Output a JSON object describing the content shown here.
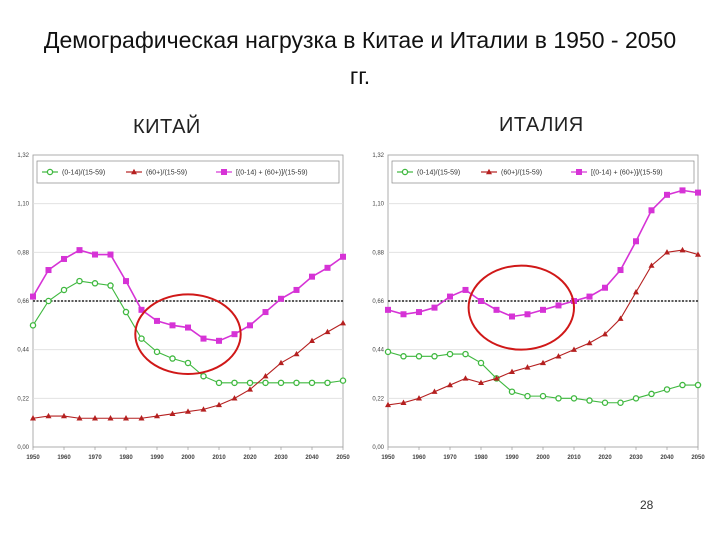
{
  "title": "Демографическая нагрузка в Китае и Италии в 1950 - 2050 гг.",
  "page_number": "28",
  "colors": {
    "green": "#3fb83f",
    "red": "#b52020",
    "magenta": "#d633d6",
    "ring": "#d01818"
  },
  "chart_data": [
    {
      "type": "line",
      "title": "КИТАЙ",
      "xlabel": "",
      "ylabel": "",
      "x": [
        1950,
        1955,
        1960,
        1965,
        1970,
        1975,
        1980,
        1985,
        1990,
        1995,
        2000,
        2005,
        2010,
        2015,
        2020,
        2025,
        2030,
        2035,
        2040,
        2045,
        2050
      ],
      "x_ticks": [
        "1950",
        "1960",
        "1970",
        "1980",
        "1990",
        "2000",
        "2010",
        "2020",
        "2030",
        "2040",
        "2050"
      ],
      "y_ticks": [
        "0,00",
        "0,22",
        "0,44",
        "0,66",
        "0,88",
        "1,10",
        "1,32"
      ],
      "ylim": [
        0,
        1.32
      ],
      "reference_line": 0.66,
      "grid": true,
      "legend_position": "top",
      "series": [
        {
          "name": "(0-14)/(15-59)",
          "color": "#3fb83f",
          "marker": "circle",
          "values": [
            0.55,
            0.66,
            0.71,
            0.75,
            0.74,
            0.73,
            0.61,
            0.49,
            0.43,
            0.4,
            0.38,
            0.32,
            0.29,
            0.29,
            0.29,
            0.29,
            0.29,
            0.29,
            0.29,
            0.29,
            0.3
          ]
        },
        {
          "name": "(60+)/(15-59)",
          "color": "#b52020",
          "marker": "triangle",
          "values": [
            0.13,
            0.14,
            0.14,
            0.13,
            0.13,
            0.13,
            0.13,
            0.13,
            0.14,
            0.15,
            0.16,
            0.17,
            0.19,
            0.22,
            0.26,
            0.32,
            0.38,
            0.42,
            0.48,
            0.52,
            0.56
          ]
        },
        {
          "name": "[(0-14) + (60+)]/(15-59)",
          "color": "#d633d6",
          "marker": "square",
          "values": [
            0.68,
            0.8,
            0.85,
            0.89,
            0.87,
            0.87,
            0.75,
            0.62,
            0.57,
            0.55,
            0.54,
            0.49,
            0.48,
            0.51,
            0.55,
            0.61,
            0.67,
            0.71,
            0.77,
            0.81,
            0.86
          ]
        }
      ],
      "highlight": {
        "shape": "ellipse",
        "cx": 2000,
        "cy": 0.51,
        "rx": 17,
        "ry": 0.18
      }
    },
    {
      "type": "line",
      "title": "ИТАЛИЯ",
      "xlabel": "",
      "ylabel": "",
      "x": [
        1950,
        1955,
        1960,
        1965,
        1970,
        1975,
        1980,
        1985,
        1990,
        1995,
        2000,
        2005,
        2010,
        2015,
        2020,
        2025,
        2030,
        2035,
        2040,
        2045,
        2050
      ],
      "x_ticks": [
        "1950",
        "1960",
        "1970",
        "1980",
        "1990",
        "2000",
        "2010",
        "2020",
        "2030",
        "2040",
        "2050"
      ],
      "y_ticks": [
        "0,00",
        "0,22",
        "0,44",
        "0,66",
        "0,88",
        "1,10",
        "1,32"
      ],
      "ylim": [
        0,
        1.32
      ],
      "reference_line": 0.66,
      "grid": true,
      "legend_position": "top",
      "series": [
        {
          "name": "(0-14)/(15-59)",
          "color": "#3fb83f",
          "marker": "circle",
          "values": [
            0.43,
            0.41,
            0.41,
            0.41,
            0.42,
            0.42,
            0.38,
            0.31,
            0.25,
            0.23,
            0.23,
            0.22,
            0.22,
            0.21,
            0.2,
            0.2,
            0.22,
            0.24,
            0.26,
            0.28,
            0.28
          ]
        },
        {
          "name": "(60+)/(15-59)",
          "color": "#b52020",
          "marker": "triangle",
          "values": [
            0.19,
            0.2,
            0.22,
            0.25,
            0.28,
            0.31,
            0.29,
            0.31,
            0.34,
            0.36,
            0.38,
            0.41,
            0.44,
            0.47,
            0.51,
            0.58,
            0.7,
            0.82,
            0.88,
            0.89,
            0.87
          ]
        },
        {
          "name": "[(0-14) + (60+)]/(15-59)",
          "color": "#d633d6",
          "marker": "square",
          "values": [
            0.62,
            0.6,
            0.61,
            0.63,
            0.68,
            0.71,
            0.66,
            0.62,
            0.59,
            0.6,
            0.62,
            0.64,
            0.66,
            0.68,
            0.72,
            0.8,
            0.93,
            1.07,
            1.14,
            1.16,
            1.15
          ]
        }
      ],
      "highlight": {
        "shape": "ellipse",
        "cx": 1993,
        "cy": 0.63,
        "rx": 17,
        "ry": 0.19
      }
    }
  ]
}
